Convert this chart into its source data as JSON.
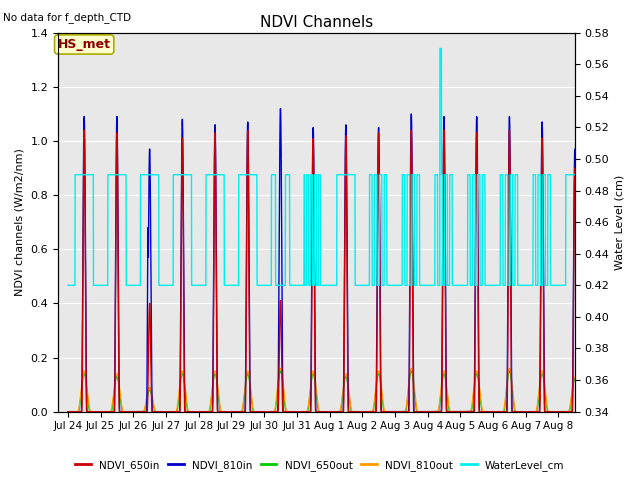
{
  "title": "NDVI Channels",
  "subtitle": "No data for f_depth_CTD",
  "ylabel_left": "NDVI channels (W/m2/nm)",
  "ylabel_right": "Water Level (cm)",
  "annotation": "HS_met",
  "xlim_days": [
    -0.3,
    15.5
  ],
  "ylim_left": [
    0.0,
    1.4
  ],
  "ylim_right": [
    0.34,
    0.58
  ],
  "xtick_labels": [
    "Jul 24",
    "Jul 25",
    "Jul 26",
    "Jul 27",
    "Jul 28",
    "Jul 29",
    "Jul 30",
    "Jul 31",
    "Aug 1",
    "Aug 2",
    "Aug 3",
    "Aug 4",
    "Aug 5",
    "Aug 6",
    "Aug 7",
    "Aug 8"
  ],
  "xtick_positions": [
    0,
    1,
    2,
    3,
    4,
    5,
    6,
    7,
    8,
    9,
    10,
    11,
    12,
    13,
    14,
    15
  ],
  "ytick_left": [
    0.0,
    0.2,
    0.4,
    0.6,
    0.8,
    1.0,
    1.2,
    1.4
  ],
  "ytick_right": [
    0.34,
    0.36,
    0.38,
    0.4,
    0.42,
    0.44,
    0.46,
    0.48,
    0.5,
    0.52,
    0.54,
    0.56,
    0.58
  ],
  "colors": {
    "NDVI_650in": "#cc0000",
    "NDVI_810in": "#0000cc",
    "NDVI_650out": "#00cc00",
    "NDVI_810out": "#ff9900",
    "WaterLevel_cm": "#00eeee"
  },
  "background_color": "#e8e8e8",
  "grid_color": "#ffffff"
}
